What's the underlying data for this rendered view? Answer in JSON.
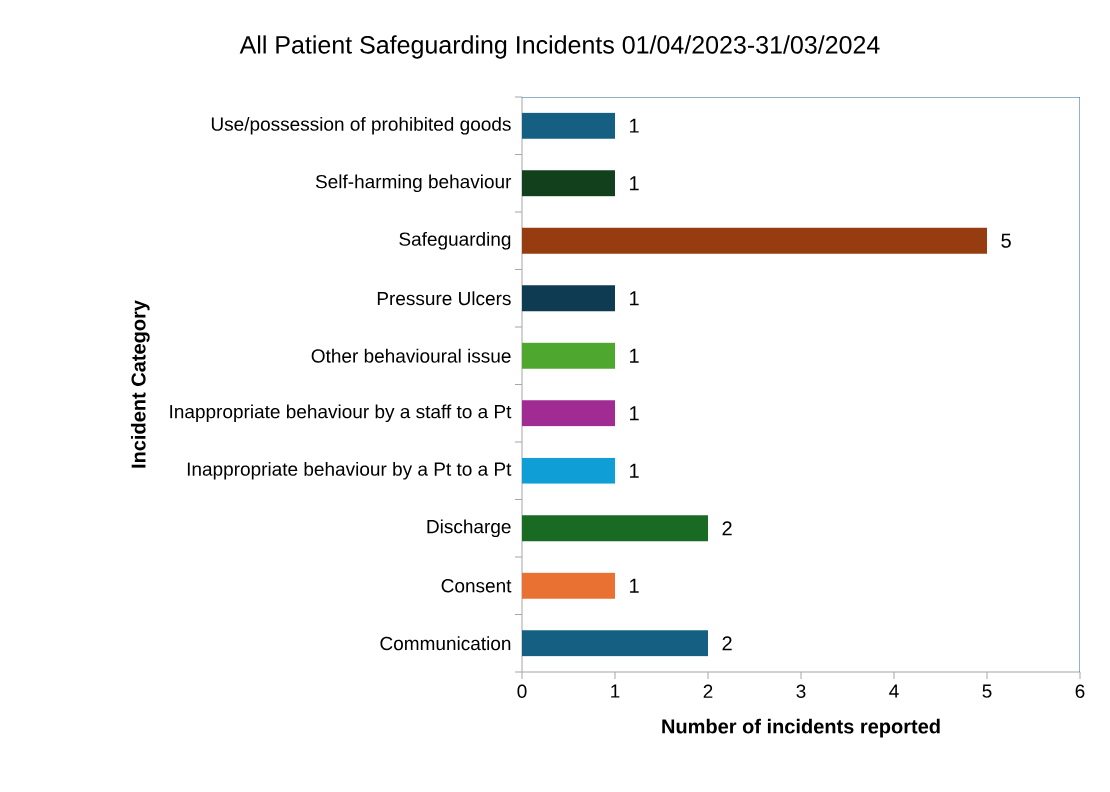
{
  "chart_data": {
    "type": "bar",
    "orientation": "horizontal",
    "title": "All  Patient Safeguarding Incidents 01/04/2023-31/03/2024",
    "xlabel": "Number of incidents reported",
    "ylabel": "Incident Category",
    "categories": [
      "Use/possession of prohibited goods",
      "Self-harming behaviour",
      "Safeguarding",
      "Pressure Ulcers",
      "Other behavioural issue",
      "Inappropriate behaviour by a staff to a Pt",
      "Inappropriate behaviour by a Pt to a Pt",
      "Discharge",
      "Consent",
      "Communication"
    ],
    "values": [
      1,
      1,
      5,
      1,
      1,
      1,
      1,
      2,
      1,
      2
    ],
    "colors": [
      "#156082",
      "#12401c",
      "#973c10",
      "#0e3a52",
      "#4ea72e",
      "#a02b93",
      "#0f9ed5",
      "#196b24",
      "#e97132",
      "#156082"
    ],
    "xlim": [
      0,
      6
    ],
    "xticks": [
      0,
      1,
      2,
      3,
      4,
      5,
      6
    ],
    "data_labels": true,
    "grid": false
  }
}
